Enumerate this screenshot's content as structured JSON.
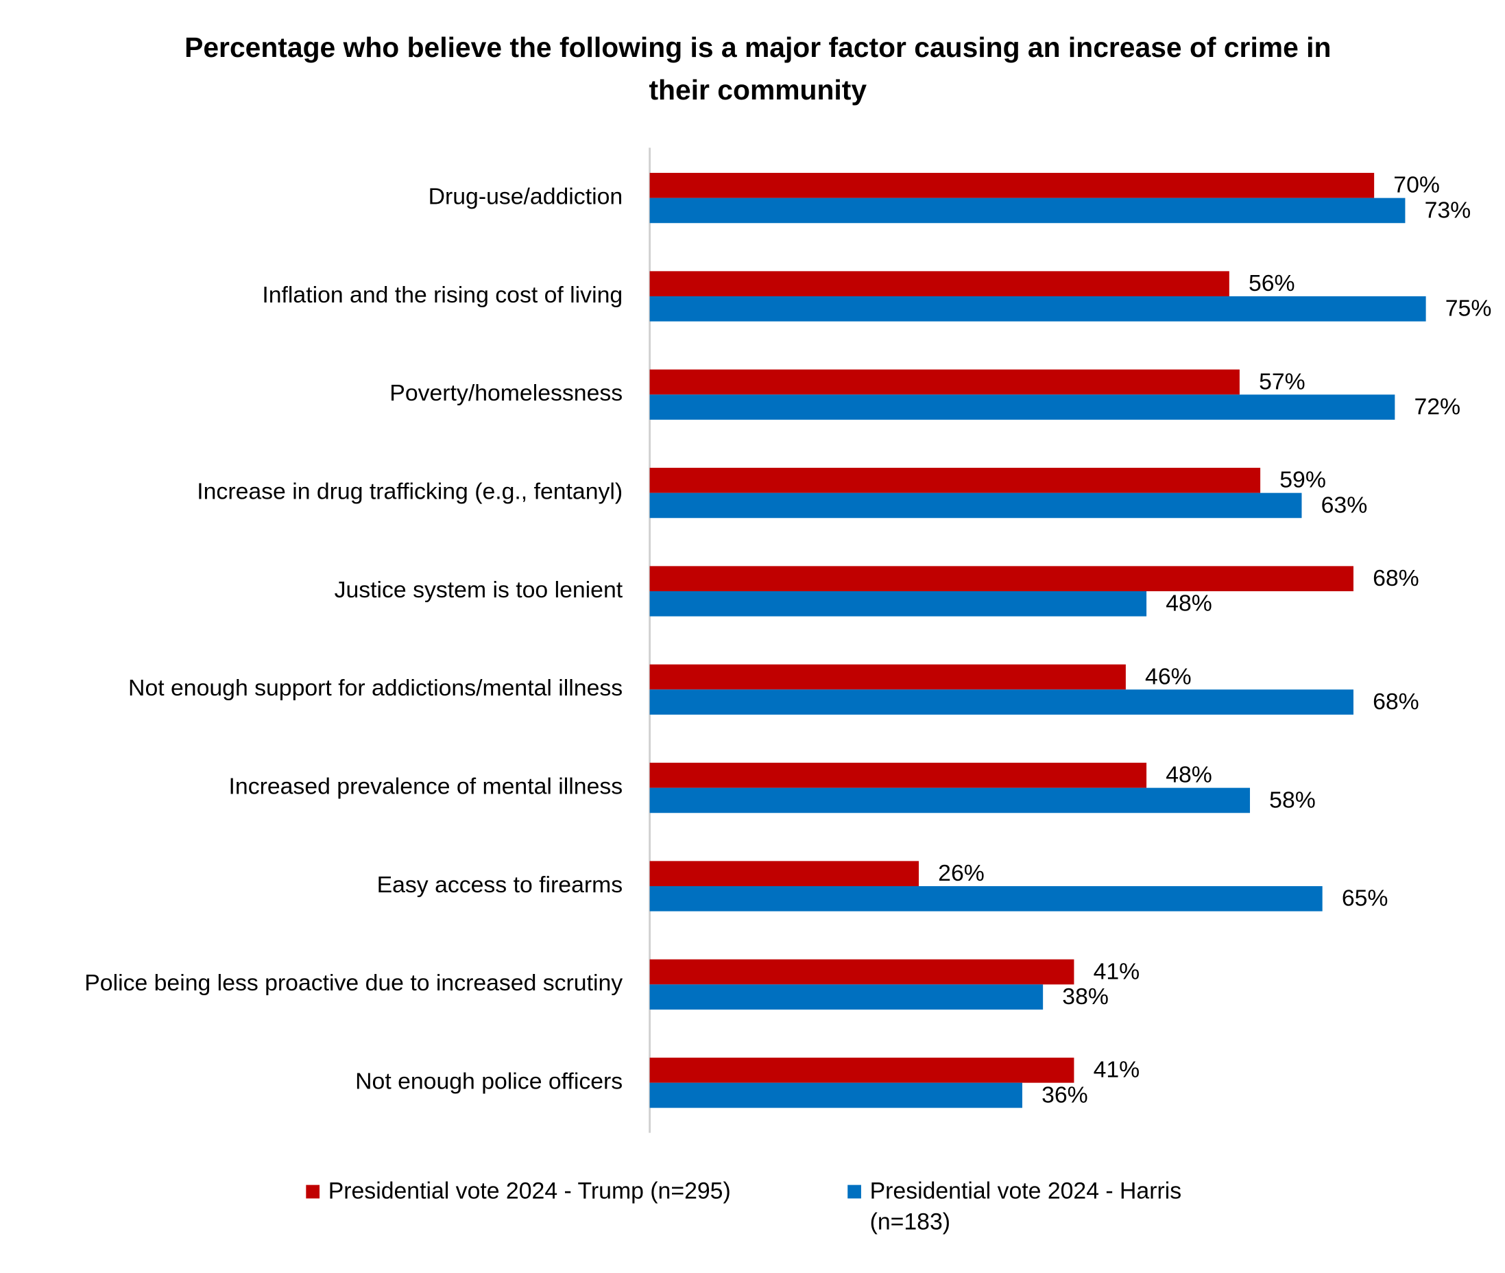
{
  "chart_data": {
    "type": "hbar",
    "title": "Percentage who believe the following is a major factor causing an increase of crime in their community",
    "categories": [
      "Drug-use/addiction",
      "Inflation and the rising cost of living",
      "Poverty/homelessness",
      "Increase in drug trafficking (e.g., fentanyl)",
      "Justice system is too lenient",
      "Not enough support for addictions/mental illness",
      "Increased prevalence of mental illness",
      "Easy access to firearms",
      "Police being less proactive due to increased scrutiny",
      "Not enough police officers"
    ],
    "series": [
      {
        "name": "Presidential vote 2024 - Trump (n=295)",
        "color": "#c00000",
        "values": [
          70,
          56,
          57,
          59,
          68,
          46,
          48,
          26,
          41,
          41
        ],
        "value_labels": [
          "70%",
          "56%",
          "57%",
          "59%",
          "68%",
          "46%",
          "48%",
          "26%",
          "41%",
          "41%"
        ]
      },
      {
        "name": "Presidential vote 2024 - Harris (n=183)",
        "color": "#0070c0",
        "values": [
          73,
          75,
          72,
          63,
          48,
          68,
          58,
          65,
          38,
          36
        ],
        "value_labels": [
          "73%",
          "75%",
          "72%",
          "63%",
          "48%",
          "68%",
          "58%",
          "65%",
          "38%",
          "36%"
        ]
      }
    ],
    "legend": "bottom"
  }
}
